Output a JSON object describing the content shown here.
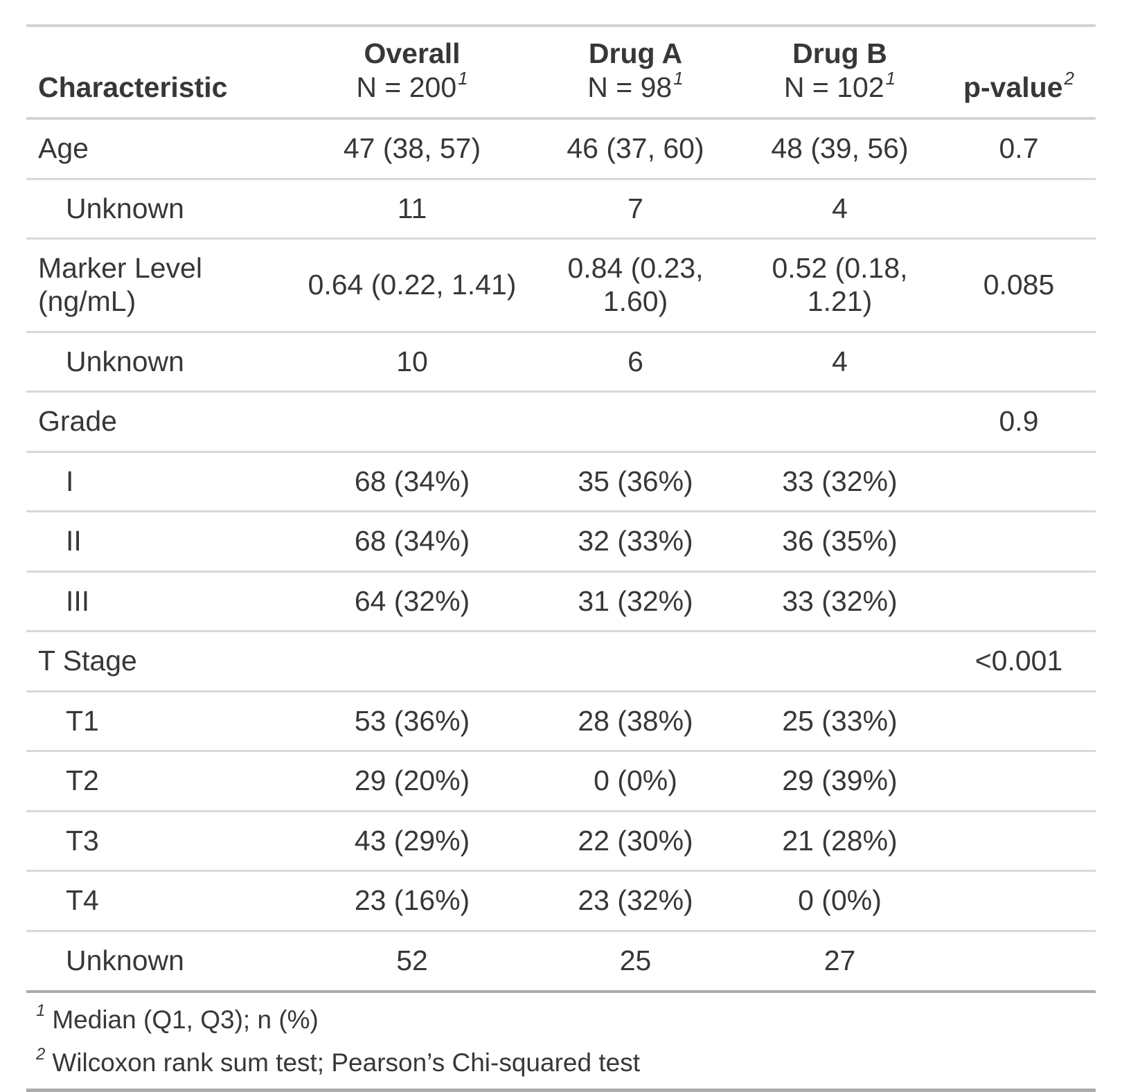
{
  "colors": {
    "background": "#FFFFFF",
    "text": "#373737",
    "border_light": "#D3D3D3",
    "border_row": "#D8D8D8",
    "border_dark": "#ABABAB"
  },
  "chart_data": {
    "type": "table",
    "columns": [
      {
        "label": "Characteristic",
        "sub": "",
        "footnote_mark": ""
      },
      {
        "label": "Overall",
        "sub": "N = 200",
        "footnote_mark": "1"
      },
      {
        "label": "Drug A",
        "sub": "N = 98",
        "footnote_mark": "1"
      },
      {
        "label": "Drug B",
        "sub": "N = 102",
        "footnote_mark": "1"
      },
      {
        "label": "p-value",
        "sub": "",
        "footnote_mark": "2"
      }
    ],
    "rows": [
      {
        "label": "Age",
        "indent": false,
        "cells": [
          "47 (38, 57)",
          "46 (37, 60)",
          "48 (39, 56)",
          "0.7"
        ]
      },
      {
        "label": "Unknown",
        "indent": true,
        "cells": [
          "11",
          "7",
          "4",
          ""
        ]
      },
      {
        "label": "Marker Level (ng/mL)",
        "indent": false,
        "cells": [
          "0.64 (0.22, 1.41)",
          "0.84 (0.23, 1.60)",
          "0.52 (0.18, 1.21)",
          "0.085"
        ]
      },
      {
        "label": "Unknown",
        "indent": true,
        "cells": [
          "10",
          "6",
          "4",
          ""
        ]
      },
      {
        "label": "Grade",
        "indent": false,
        "cells": [
          "",
          "",
          "",
          "0.9"
        ]
      },
      {
        "label": "I",
        "indent": true,
        "cells": [
          "68 (34%)",
          "35 (36%)",
          "33 (32%)",
          ""
        ]
      },
      {
        "label": "II",
        "indent": true,
        "cells": [
          "68 (34%)",
          "32 (33%)",
          "36 (35%)",
          ""
        ]
      },
      {
        "label": "III",
        "indent": true,
        "cells": [
          "64 (32%)",
          "31 (32%)",
          "33 (32%)",
          ""
        ]
      },
      {
        "label": "T Stage",
        "indent": false,
        "cells": [
          "",
          "",
          "",
          "<0.001"
        ]
      },
      {
        "label": "T1",
        "indent": true,
        "cells": [
          "53 (36%)",
          "28 (38%)",
          "25 (33%)",
          ""
        ]
      },
      {
        "label": "T2",
        "indent": true,
        "cells": [
          "29 (20%)",
          "0 (0%)",
          "29 (39%)",
          ""
        ]
      },
      {
        "label": "T3",
        "indent": true,
        "cells": [
          "43 (29%)",
          "22 (30%)",
          "21 (28%)",
          ""
        ]
      },
      {
        "label": "T4",
        "indent": true,
        "cells": [
          "23 (16%)",
          "23 (32%)",
          "0 (0%)",
          ""
        ]
      },
      {
        "label": "Unknown",
        "indent": true,
        "cells": [
          "52",
          "25",
          "27",
          ""
        ]
      }
    ],
    "footnotes": [
      {
        "mark": "1",
        "text": "Median (Q1, Q3); n (%)"
      },
      {
        "mark": "2",
        "text": "Wilcoxon rank sum test; Pearson’s Chi-squared test"
      }
    ]
  }
}
